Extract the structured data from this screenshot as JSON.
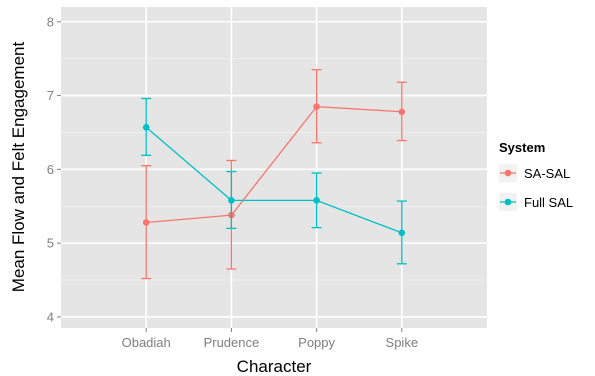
{
  "chart_data": {
    "type": "line",
    "xlabel": "Character",
    "ylabel": "Mean Flow and Felt Engagement",
    "categories": [
      "Obadiah",
      "Prudence",
      "Poppy",
      "Spike"
    ],
    "ylim": [
      3.85,
      8.2
    ],
    "yticks": [
      4,
      5,
      6,
      7,
      8
    ],
    "grid": true,
    "legend": {
      "title": "System",
      "position": "right"
    },
    "series": [
      {
        "name": "SA-SAL",
        "color": "#F8766D",
        "values": [
          5.28,
          5.38,
          6.85,
          6.78
        ],
        "error_low": [
          4.52,
          4.65,
          6.36,
          6.39
        ],
        "error_high": [
          6.05,
          6.12,
          7.35,
          7.18
        ]
      },
      {
        "name": "Full SAL",
        "color": "#00BFC4",
        "values": [
          6.57,
          5.58,
          5.58,
          5.14
        ],
        "error_low": [
          6.19,
          5.2,
          5.21,
          4.72
        ],
        "error_high": [
          6.96,
          5.97,
          5.95,
          5.57
        ]
      }
    ]
  }
}
